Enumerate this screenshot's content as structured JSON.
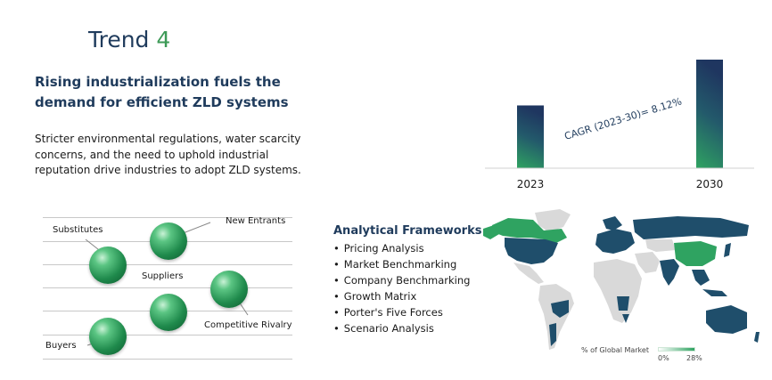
{
  "trend": {
    "label": "Trend",
    "number": "4"
  },
  "headline": "Rising industrialization fuels the demand for efficient ZLD systems",
  "body": "Stricter environmental regulations, water scarcity concerns, and the need to uphold industrial reputation drive industries to adopt ZLD systems.",
  "porter": {
    "substitutes": "Substitutes",
    "new_entrants": "New Entrants",
    "suppliers": "Suppliers",
    "competitive_rivalry": "Competitive Rivalry",
    "buyers": "Buyers"
  },
  "frameworks": {
    "title": "Analytical Frameworks",
    "items": [
      "Pricing Analysis",
      "Market Benchmarking",
      "Company Benchmarking",
      "Growth Matrix",
      "Porter's Five Forces",
      "Scenario Analysis"
    ]
  },
  "map_legend": {
    "title": "% of Global Market",
    "min": "0%",
    "max": "28%"
  },
  "colors": {
    "dark_navy": "#1f3b5c",
    "green": "#3d9a57",
    "map_dark": "#1f4e6b",
    "map_green": "#2fa361",
    "map_grey": "#d9d9d9"
  },
  "chart_data": {
    "type": "bar",
    "categories": [
      "2023",
      "2030"
    ],
    "values": [
      1.0,
      1.73
    ],
    "annotation": "CAGR (2023-30)= 8.12%",
    "grid": false
  }
}
